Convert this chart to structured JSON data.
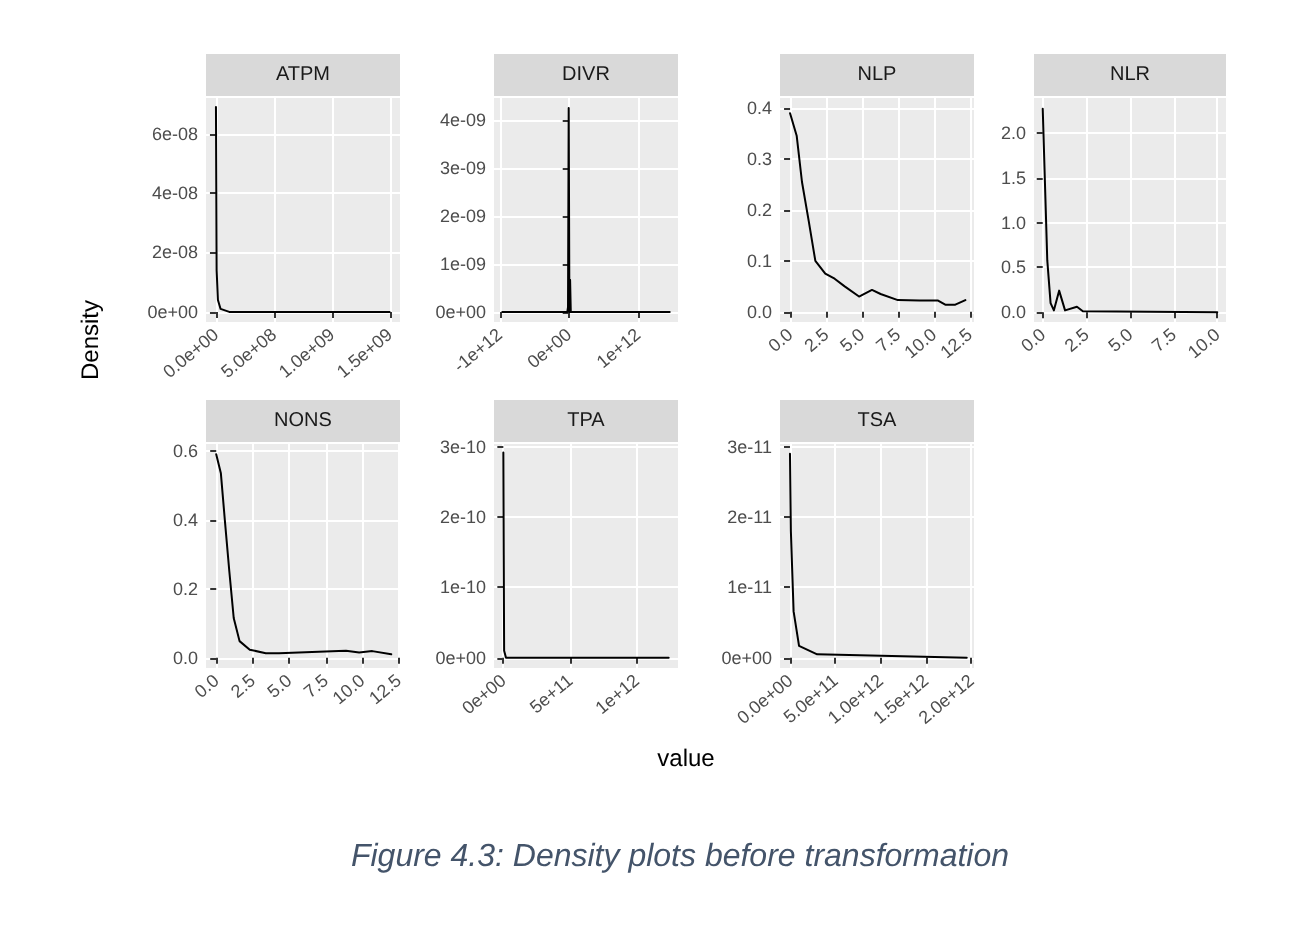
{
  "chart_data": [
    {
      "type": "line",
      "title": "ATPM",
      "ylabel": "Density",
      "color": "#000000",
      "line_style": "solid",
      "marker": "none",
      "grid": true,
      "x": [
        0,
        5800000.0,
        17000000.0,
        40000000.0,
        115000000.0,
        1500000000.0
      ],
      "values": [
        6.9e-08,
        1.4e-08,
        4e-09,
        1e-09,
        0,
        0
      ],
      "xlim": [
        -86000000.0,
        1590000000.0
      ],
      "xticks": [
        {
          "value": 0,
          "label": "0.0e+00"
        },
        {
          "value": 500000000.0,
          "label": "5.0e+08"
        },
        {
          "value": 1000000000.0,
          "label": "1.0e+09"
        },
        {
          "value": 1500000000.0,
          "label": "1.5e+09"
        }
      ],
      "ylim": [
        -3.4e-09,
        7.2e-08
      ],
      "yticks": [
        {
          "value": 0,
          "label": "0e+00"
        },
        {
          "value": 2e-08,
          "label": "2e-08"
        },
        {
          "value": 4e-08,
          "label": "4e-08"
        },
        {
          "value": 6e-08,
          "label": "6e-08"
        }
      ]
    },
    {
      "type": "line",
      "title": "DIVR",
      "color": "#000000",
      "line_style": "solid",
      "marker": "none",
      "grid": true,
      "x": [
        -960000000000.0,
        -20000000000.0,
        -10000000000.0,
        0,
        10000000000.0,
        20000000000.0,
        30000000000.0,
        1460000000000.0
      ],
      "values": [
        0,
        0,
        1e-10,
        4.25e-09,
        0,
        6.7e-10,
        0,
        0
      ],
      "xlim": [
        -1080000000000.0,
        1580000000000.0
      ],
      "xticks": [
        {
          "value": -1000000000000.0,
          "label": "-1e+12"
        },
        {
          "value": 0,
          "label": "0e+00"
        },
        {
          "value": 1000000000000.0,
          "label": "1e+12"
        }
      ],
      "ylim": [
        -2.1e-10,
        4.46e-09
      ],
      "yticks": [
        {
          "value": 0,
          "label": "0e+00"
        },
        {
          "value": 1e-09,
          "label": "1e-09"
        },
        {
          "value": 2e-09,
          "label": "2e-09"
        },
        {
          "value": 3e-09,
          "label": "3e-09"
        },
        {
          "value": 4e-09,
          "label": "4e-09"
        }
      ]
    },
    {
      "type": "line",
      "title": "NLP",
      "color": "#000000",
      "line_style": "solid",
      "marker": "none",
      "grid": true,
      "x": [
        0,
        0.46,
        0.83,
        1.3,
        1.76,
        2.45,
        3.1,
        3.8,
        4.8,
        5.7,
        6.3,
        7.5,
        9,
        10.3,
        10.8,
        11.5,
        12.2
      ],
      "values": [
        0.39,
        0.346,
        0.255,
        0.178,
        0.1,
        0.075,
        0.065,
        0.05,
        0.03,
        0.043,
        0.035,
        0.023,
        0.022,
        0.022,
        0.014,
        0.014,
        0.023
      ],
      "xlim": [
        -0.7,
        12.8
      ],
      "xticks": [
        {
          "value": 0,
          "label": "0.0"
        },
        {
          "value": 2.5,
          "label": "2.5"
        },
        {
          "value": 5,
          "label": "5.0"
        },
        {
          "value": 7.5,
          "label": "7.5"
        },
        {
          "value": 10,
          "label": "10.0"
        },
        {
          "value": 12.5,
          "label": "12.5"
        }
      ],
      "ylim": [
        -0.02,
        0.42
      ],
      "yticks": [
        {
          "value": 0,
          "label": "0.0"
        },
        {
          "value": 0.1,
          "label": "0.1"
        },
        {
          "value": 0.2,
          "label": "0.2"
        },
        {
          "value": 0.3,
          "label": "0.3"
        },
        {
          "value": 0.4,
          "label": "0.4"
        }
      ]
    },
    {
      "type": "line",
      "title": "NLR",
      "color": "#000000",
      "line_style": "solid",
      "marker": "none",
      "grid": true,
      "x": [
        0,
        0.26,
        0.45,
        0.64,
        0.94,
        1.28,
        1.96,
        2.3,
        10
      ],
      "values": [
        2.27,
        0.58,
        0.1,
        0.02,
        0.24,
        0.02,
        0.06,
        0.01,
        0
      ],
      "xlim": [
        -0.5,
        10.5
      ],
      "xticks": [
        {
          "value": 0,
          "label": "0.0"
        },
        {
          "value": 2.5,
          "label": "2.5"
        },
        {
          "value": 5,
          "label": "5.0"
        },
        {
          "value": 7.5,
          "label": "7.5"
        },
        {
          "value": 10,
          "label": "10.0"
        }
      ],
      "ylim": [
        -0.11,
        2.39
      ],
      "yticks": [
        {
          "value": 0,
          "label": "0.0"
        },
        {
          "value": 0.5,
          "label": "0.5"
        },
        {
          "value": 1,
          "label": "1.0"
        },
        {
          "value": 1.5,
          "label": "1.5"
        },
        {
          "value": 2,
          "label": "2.0"
        }
      ]
    },
    {
      "type": "line",
      "title": "NONS",
      "color": "#000000",
      "line_style": "solid",
      "marker": "none",
      "grid": true,
      "x": [
        0,
        0.32,
        0.59,
        0.9,
        1.2,
        1.6,
        2.3,
        3.4,
        4.3,
        8.4,
        8.9,
        9.8,
        10.7,
        12
      ],
      "values": [
        0.59,
        0.535,
        0.4,
        0.25,
        0.115,
        0.048,
        0.023,
        0.013,
        0.013,
        0.019,
        0.02,
        0.015,
        0.019,
        0.01
      ],
      "xlim": [
        -0.7,
        12.6
      ],
      "xticks": [
        {
          "value": 0,
          "label": "0.0"
        },
        {
          "value": 2.5,
          "label": "2.5"
        },
        {
          "value": 5,
          "label": "5.0"
        },
        {
          "value": 7.5,
          "label": "7.5"
        },
        {
          "value": 10,
          "label": "10.0"
        },
        {
          "value": 12.5,
          "label": "12.5"
        }
      ],
      "ylim": [
        -0.03,
        0.62
      ],
      "yticks": [
        {
          "value": 0,
          "label": "0.0"
        },
        {
          "value": 0.2,
          "label": "0.2"
        },
        {
          "value": 0.4,
          "label": "0.4"
        },
        {
          "value": 0.6,
          "label": "0.6"
        }
      ]
    },
    {
      "type": "line",
      "title": "TPA",
      "xlabel": "value",
      "color": "#000000",
      "line_style": "solid",
      "marker": "none",
      "grid": true,
      "x": [
        0,
        3000000000.0,
        6000000000.0,
        20000000000.0,
        1240000000000.0
      ],
      "values": [
        2.92e-10,
        1.46e-10,
        1e-11,
        0,
        0
      ],
      "xlim": [
        -70000000000.0,
        1310000000000.0
      ],
      "xticks": [
        {
          "value": 0,
          "label": "0e+00"
        },
        {
          "value": 500000000000.0,
          "label": "5e+11"
        },
        {
          "value": 1000000000000.0,
          "label": "1e+12"
        }
      ],
      "ylim": [
        -1.45e-11,
        3.04e-10
      ],
      "yticks": [
        {
          "value": 0,
          "label": "0e+00"
        },
        {
          "value": 1e-10,
          "label": "1e-10"
        },
        {
          "value": 2e-10,
          "label": "2e-10"
        },
        {
          "value": 3e-10,
          "label": "3e-10"
        }
      ]
    },
    {
      "type": "line",
      "title": "TSA",
      "color": "#000000",
      "line_style": "solid",
      "marker": "none",
      "grid": true,
      "annotations": [
        "Figure 4.3: Density plots before transformation"
      ],
      "x": [
        0,
        10000000000.0,
        40000000000.0,
        100000000000.0,
        300000000000.0,
        1950000000000.0
      ],
      "values": [
        2.9e-11,
        1.8e-11,
        6.6e-12,
        1.7e-12,
        5e-13,
        0
      ],
      "xlim": [
        -110000000000.0,
        2030000000000.0
      ],
      "xticks": [
        {
          "value": 0,
          "label": "0.0e+00"
        },
        {
          "value": 500000000000.0,
          "label": "5.0e+11"
        },
        {
          "value": 1000000000000.0,
          "label": "1.0e+12"
        },
        {
          "value": 1500000000000.0,
          "label": "1.5e+12"
        },
        {
          "value": 2000000000000.0,
          "label": "2.0e+12"
        }
      ],
      "ylim": [
        -1.45e-12,
        3.04e-11
      ],
      "yticks": [
        {
          "value": 0,
          "label": "0e+00"
        },
        {
          "value": 1e-11,
          "label": "1e-11"
        },
        {
          "value": 2e-11,
          "label": "2e-11"
        },
        {
          "value": 3e-11,
          "label": "3e-11"
        }
      ]
    }
  ]
}
